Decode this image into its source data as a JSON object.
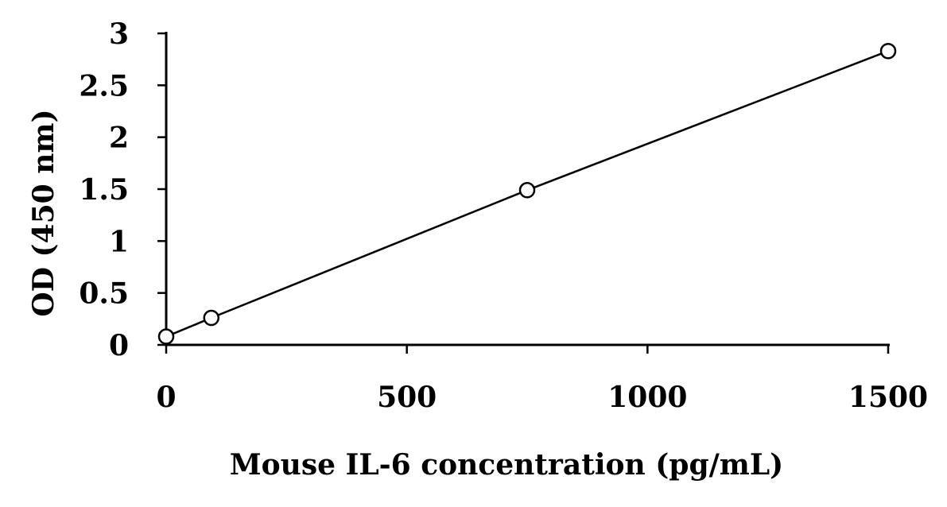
{
  "chart_data": {
    "type": "scatter",
    "title": "",
    "xlabel": "Mouse IL-6 concentration (pg/mL)",
    "ylabel": "OD (450 nm)",
    "xlim": [
      0,
      1500
    ],
    "ylim": [
      0,
      3
    ],
    "x_ticks": [
      0,
      500,
      1000,
      1500
    ],
    "y_ticks": [
      0,
      0.5,
      1,
      1.5,
      2,
      2.5,
      3
    ],
    "x_tick_labels": [
      "0",
      "500",
      "1000",
      "1500"
    ],
    "y_tick_labels": [
      "0",
      "0.5",
      "1",
      "1.5",
      "2",
      "2.5",
      "3"
    ],
    "grid": false,
    "legend": "none",
    "series": [
      {
        "marker": "open-circle",
        "line": "straight",
        "color": "#000000",
        "points": [
          {
            "x": 0,
            "y": 0.08
          },
          {
            "x": 93.75,
            "y": 0.26
          },
          {
            "x": 750,
            "y": 1.49
          },
          {
            "x": 1500,
            "y": 2.83
          }
        ]
      }
    ]
  }
}
